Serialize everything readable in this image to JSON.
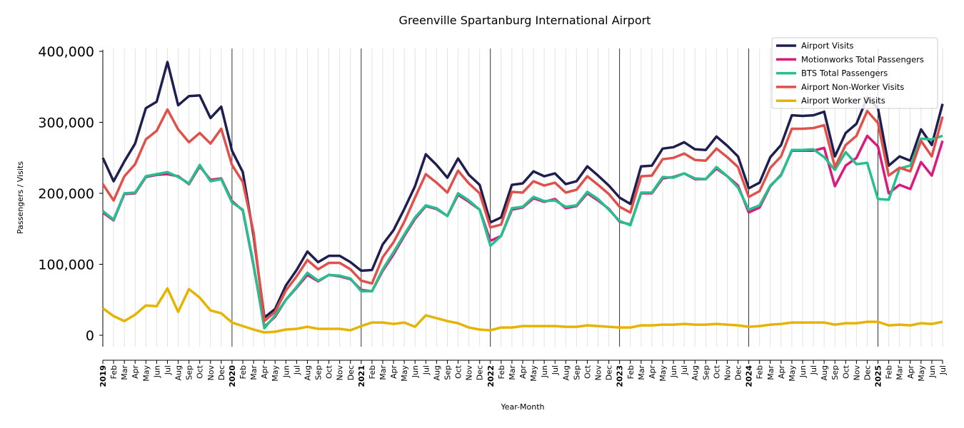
{
  "chart_data": {
    "type": "line",
    "title": "Greenville Spartanburg International Airport",
    "xlabel": "Year-Month",
    "ylabel": "Passengers / Visits",
    "ylim": [
      -15000,
      400000
    ],
    "y_ticks": [
      0,
      100000,
      200000,
      300000,
      400000
    ],
    "y_tick_labels": [
      "0",
      "100,000",
      "200,000",
      "300,000",
      "400,000"
    ],
    "grid": "vertical monthly",
    "legend_position": "top-right",
    "x_tick_labels": [
      "2019",
      "Feb",
      "Mar",
      "Apr",
      "May",
      "Jun",
      "Jul",
      "Aug",
      "Sep",
      "Oct",
      "Nov",
      "Dec",
      "2020",
      "Feb",
      "Mar",
      "Apr",
      "May",
      "Jun",
      "Jul",
      "Aug",
      "Sep",
      "Oct",
      "Nov",
      "Dec",
      "2021",
      "Feb",
      "Mar",
      "Apr",
      "May",
      "Jun",
      "Jul",
      "Aug",
      "Sep",
      "Oct",
      "Nov",
      "Dec",
      "2022",
      "Feb",
      "Mar",
      "Apr",
      "May",
      "Jun",
      "Jul",
      "Aug",
      "Sep",
      "Oct",
      "Nov",
      "Dec",
      "2023",
      "Feb",
      "Mar",
      "Apr",
      "May",
      "Jun",
      "Jul",
      "Aug",
      "Sep",
      "Oct",
      "Nov",
      "Dec",
      "2024",
      "Feb",
      "Mar",
      "Apr",
      "May",
      "Jun",
      "Jul",
      "Aug",
      "Sep",
      "Oct",
      "Nov",
      "Dec",
      "2025",
      "Feb",
      "Mar",
      "Apr",
      "May",
      "Jun",
      "Jul"
    ],
    "series": [
      {
        "name": "Airport Visits",
        "color": "#1f1f4f",
        "values": [
          250000,
          217000,
          245000,
          270000,
          320000,
          329000,
          385000,
          324000,
          337000,
          338000,
          306000,
          322000,
          260000,
          230000,
          140000,
          25000,
          37000,
          70000,
          92000,
          118000,
          103000,
          112000,
          112000,
          103000,
          91000,
          92000,
          128000,
          148000,
          178000,
          210000,
          255000,
          240000,
          222000,
          249000,
          226000,
          212000,
          159000,
          166000,
          212000,
          214000,
          231000,
          224000,
          228000,
          213000,
          217000,
          238000,
          225000,
          211000,
          194000,
          185000,
          238000,
          239000,
          263000,
          265000,
          272000,
          262000,
          261000,
          280000,
          267000,
          252000,
          207000,
          215000,
          251000,
          268000,
          310000,
          309000,
          310000,
          315000,
          252000,
          285000,
          298000,
          335000,
          320000,
          239000,
          252000,
          246000,
          290000,
          268000,
          326000
        ]
      },
      {
        "name": "Motionworks Total Passengers",
        "color": "#d81b7f",
        "values": [
          173000,
          162000,
          199000,
          200000,
          223000,
          226000,
          227000,
          224000,
          213000,
          238000,
          219000,
          221000,
          189000,
          176000,
          98000,
          12000,
          26000,
          50000,
          67000,
          85000,
          76000,
          85000,
          83000,
          79000,
          64000,
          62000,
          91000,
          114000,
          140000,
          164000,
          182000,
          178000,
          168000,
          198000,
          188000,
          177000,
          133000,
          140000,
          177000,
          180000,
          193000,
          188000,
          192000,
          179000,
          182000,
          200000,
          190000,
          178000,
          160000,
          156000,
          200000,
          200000,
          221000,
          223000,
          228000,
          220000,
          220000,
          235000,
          224000,
          211000,
          173000,
          180000,
          210000,
          226000,
          260000,
          260000,
          260000,
          264000,
          210000,
          239000,
          250000,
          281000,
          266000,
          200000,
          212000,
          206000,
          244000,
          225000,
          274000
        ]
      },
      {
        "name": "BTS Total Passengers",
        "color": "#26c08f",
        "values": [
          175000,
          163000,
          200000,
          201000,
          224000,
          227000,
          230000,
          223000,
          214000,
          240000,
          217000,
          220000,
          187000,
          177000,
          100000,
          10000,
          28000,
          50000,
          68000,
          88000,
          77000,
          85000,
          84000,
          80000,
          62000,
          62000,
          93000,
          117000,
          142000,
          166000,
          183000,
          179000,
          168000,
          200000,
          190000,
          177000,
          126000,
          140000,
          179000,
          181000,
          195000,
          189000,
          190000,
          181000,
          183000,
          202000,
          192000,
          177000,
          161000,
          155000,
          201000,
          201000,
          223000,
          222000,
          228000,
          221000,
          220000,
          237000,
          224000,
          208000,
          177000,
          183000,
          211000,
          225000,
          261000,
          261000,
          262000,
          251000,
          233000,
          258000,
          241000,
          243000,
          192000,
          191000,
          235000,
          239000,
          277000,
          276000,
          281000
        ]
      },
      {
        "name": "Airport Non-Worker Visits",
        "color": "#e0514b",
        "values": [
          213000,
          190000,
          224000,
          241000,
          276000,
          288000,
          318000,
          290000,
          272000,
          285000,
          270000,
          291000,
          240000,
          216000,
          145000,
          20000,
          33000,
          63000,
          83000,
          106000,
          93000,
          102000,
          102000,
          93000,
          77000,
          73000,
          110000,
          131000,
          160000,
          194000,
          227000,
          215000,
          201000,
          232000,
          214000,
          200000,
          152000,
          156000,
          202000,
          201000,
          217000,
          211000,
          215000,
          201000,
          205000,
          224000,
          212000,
          199000,
          181000,
          173000,
          224000,
          225000,
          248000,
          250000,
          256000,
          247000,
          246000,
          263000,
          251000,
          237000,
          195000,
          203000,
          236000,
          252000,
          291000,
          291000,
          292000,
          296000,
          237000,
          268000,
          281000,
          316000,
          299000,
          225000,
          236000,
          231000,
          274000,
          252000,
          308000
        ]
      },
      {
        "name": "Airport Worker Visits",
        "color": "#e6b400",
        "values": [
          38000,
          27000,
          20000,
          29000,
          42000,
          41000,
          66000,
          33000,
          65000,
          53000,
          35000,
          31000,
          18000,
          13000,
          8000,
          4000,
          5000,
          8000,
          9000,
          12000,
          9000,
          9000,
          9000,
          7000,
          13000,
          18000,
          18000,
          16000,
          18000,
          12000,
          28000,
          24000,
          20000,
          17000,
          11000,
          8000,
          7000,
          11000,
          11000,
          13000,
          13000,
          13000,
          13000,
          12000,
          12000,
          14000,
          13000,
          12000,
          11000,
          11000,
          14000,
          14000,
          15000,
          15000,
          16000,
          15000,
          15000,
          16000,
          15000,
          14000,
          12000,
          13000,
          15000,
          16000,
          18000,
          18000,
          18000,
          18000,
          15000,
          17000,
          17000,
          19000,
          19000,
          14000,
          15000,
          14000,
          17000,
          16000,
          19000
        ]
      }
    ]
  }
}
